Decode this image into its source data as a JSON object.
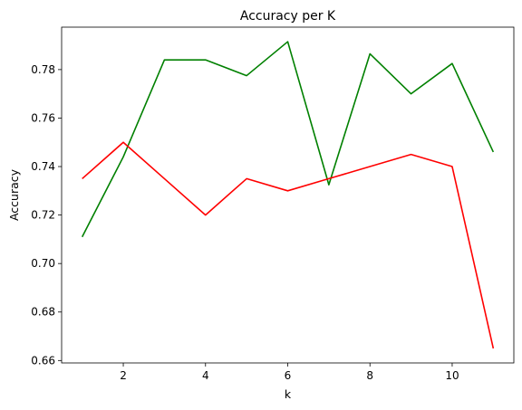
{
  "chart_data": {
    "type": "line",
    "title": "Accuracy per K",
    "xlabel": "k",
    "ylabel": "Accuracy",
    "xlim": [
      0.5,
      11.5
    ],
    "ylim": [
      0.659,
      0.7975
    ],
    "xticks": [
      2,
      4,
      6,
      8,
      10
    ],
    "yticks": [
      0.66,
      0.68,
      0.7,
      0.72,
      0.74,
      0.76,
      0.78
    ],
    "ytick_labels": [
      "0.66",
      "0.68",
      "0.70",
      "0.72",
      "0.74",
      "0.76",
      "0.78"
    ],
    "grid": false,
    "legend": "none",
    "x": [
      1,
      2,
      3,
      4,
      5,
      6,
      7,
      8,
      9,
      10,
      11
    ],
    "series": [
      {
        "color": "#008000",
        "values": [
          0.711,
          0.744,
          0.784,
          0.784,
          0.7775,
          0.7915,
          0.7325,
          0.7865,
          0.77,
          0.7825,
          0.746
        ]
      },
      {
        "color": "#ff0000",
        "values": [
          0.735,
          0.75,
          0.735,
          0.72,
          0.735,
          0.73,
          0.735,
          0.74,
          0.745,
          0.74,
          0.665
        ]
      }
    ]
  }
}
